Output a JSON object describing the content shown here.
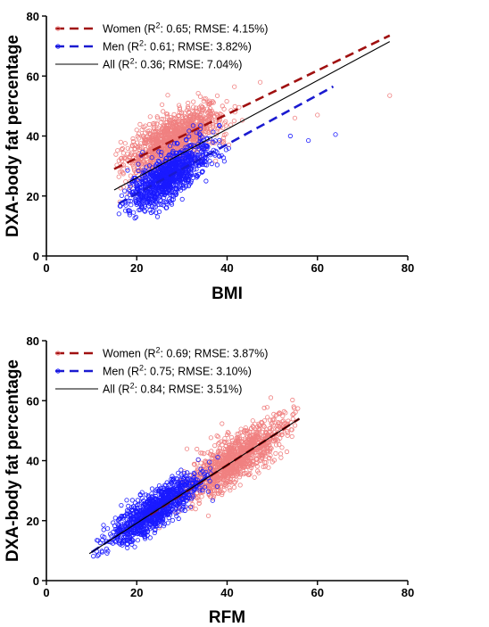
{
  "chart_data": [
    {
      "type": "scatter",
      "xlabel": "BMI",
      "ylabel": "DXA-body fat percentage",
      "xlim": [
        0,
        80
      ],
      "ylim": [
        0,
        80
      ],
      "xticks": [
        "0",
        "20",
        "40",
        "60",
        "80"
      ],
      "yticks": [
        "0",
        "20",
        "40",
        "60",
        "80"
      ],
      "grid": false,
      "legend_position": "top-left",
      "series": [
        {
          "name": "Women",
          "legend_label": "Women (R",
          "legend_stats": ": 0.65; RMSE: 4.15%)",
          "marker_color": "#f08080",
          "line_color": "#a01010",
          "line_style": "dashed",
          "fit": {
            "x": [
              15,
              76
            ],
            "y": [
              29,
              73.5
            ]
          },
          "cloud": {
            "x_range": [
              15,
              52
            ],
            "center_x": 28,
            "spread_x": 5.5,
            "slope": 0.73,
            "intercept": 18.2,
            "resid_sd": 4.15,
            "n": 1100
          },
          "outliers": [
            [
              76,
              53.5
            ],
            [
              60,
              47
            ],
            [
              55,
              46
            ]
          ]
        },
        {
          "name": "Men",
          "legend_label": "Men (R",
          "legend_stats": ": 0.61; RMSE: 3.82%)",
          "marker_color": "#1a1aff",
          "line_color": "#1a1ad0",
          "line_style": "dashed",
          "fit": {
            "x": [
              16,
              63.5
            ],
            "y": [
              17.5,
              56.5
            ]
          },
          "cloud": {
            "x_range": [
              16,
              50
            ],
            "center_x": 27,
            "spread_x": 4.5,
            "slope": 0.82,
            "intercept": 4.4,
            "resid_sd": 3.82,
            "n": 1000
          },
          "outliers": [
            [
              64,
              40.5
            ],
            [
              58,
              38.5
            ],
            [
              54,
              40
            ]
          ]
        },
        {
          "name": "All",
          "legend_label": "All (R",
          "legend_stats": ": 0.36; RMSE: 7.04%)",
          "marker_color": null,
          "line_color": "#000000",
          "line_style": "solid",
          "fit": {
            "x": [
              15,
              76
            ],
            "y": [
              22,
              71.5
            ]
          }
        }
      ]
    },
    {
      "type": "scatter",
      "xlabel": "RFM",
      "ylabel": "DXA-body fat percentage",
      "xlim": [
        0,
        80
      ],
      "ylim": [
        0,
        80
      ],
      "xticks": [
        "0",
        "20",
        "40",
        "60",
        "80"
      ],
      "yticks": [
        "0",
        "20",
        "40",
        "60",
        "80"
      ],
      "grid": false,
      "legend_position": "top-left",
      "series": [
        {
          "name": "Women",
          "legend_label": "Women (R",
          "legend_stats": ": 0.69; RMSE: 3.87%)",
          "marker_color": "#f08080",
          "line_color": "#a01010",
          "line_style": "dashed",
          "fit": {
            "x": [
              23,
              56
            ],
            "y": [
              22,
              54
            ]
          },
          "cloud": {
            "x_range": [
              22,
              56
            ],
            "center_x": 42,
            "spread_x": 5.5,
            "slope": 0.97,
            "intercept": 0,
            "resid_sd": 3.87,
            "n": 1100
          },
          "outliers": []
        },
        {
          "name": "Men",
          "legend_label": "Men (R",
          "legend_stats": ": 0.75; RMSE: 3.10%)",
          "marker_color": "#1a1aff",
          "line_color": "#1a1ad0",
          "line_style": "dashed",
          "fit": {
            "x": [
              10,
              36
            ],
            "y": [
              9.5,
              35
            ]
          },
          "cloud": {
            "x_range": [
              9.5,
              38
            ],
            "center_x": 24,
            "spread_x": 5,
            "slope": 0.98,
            "intercept": 0,
            "resid_sd": 3.1,
            "n": 1000
          },
          "outliers": []
        },
        {
          "name": "All",
          "legend_label": "All (R",
          "legend_stats": ": 0.84; RMSE: 3.51%)",
          "marker_color": null,
          "line_color": "#000000",
          "line_style": "solid",
          "fit": {
            "x": [
              9.5,
              56
            ],
            "y": [
              9,
              54
            ]
          }
        }
      ]
    }
  ]
}
